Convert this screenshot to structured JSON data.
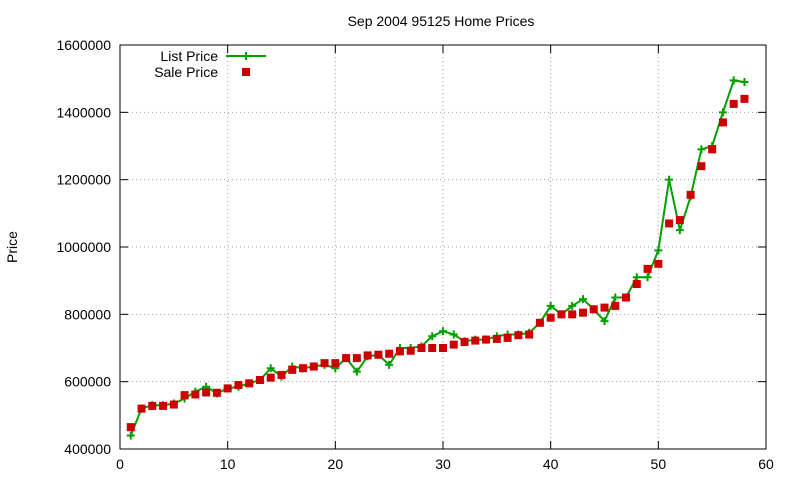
{
  "chart_data": {
    "type": "line",
    "title": "Sep 2004 95125 Home Prices",
    "xlabel": "",
    "ylabel": "Price",
    "xlim": [
      0,
      60
    ],
    "ylim": [
      400000,
      1600000
    ],
    "xticks": [
      "0",
      "10",
      "20",
      "30",
      "40",
      "50",
      "60"
    ],
    "yticks": [
      "400000",
      "600000",
      "800000",
      "1000000",
      "1200000",
      "1400000",
      "1600000"
    ],
    "grid": true,
    "legend_position": "top-left",
    "series": [
      {
        "name": "List Price",
        "style": "line-with-plus-markers",
        "color": "#00a000",
        "x": [
          1,
          2,
          3,
          4,
          5,
          6,
          7,
          8,
          9,
          10,
          11,
          12,
          13,
          14,
          15,
          16,
          17,
          18,
          19,
          20,
          21,
          22,
          23,
          24,
          25,
          26,
          27,
          28,
          29,
          30,
          31,
          32,
          33,
          34,
          35,
          36,
          37,
          38,
          39,
          40,
          41,
          42,
          43,
          44,
          45,
          46,
          47,
          48,
          49,
          50,
          51,
          52,
          53,
          54,
          55,
          56,
          57,
          58
        ],
        "y": [
          440000,
          520000,
          530000,
          530000,
          535000,
          550000,
          570000,
          585000,
          565000,
          580000,
          585000,
          595000,
          605000,
          640000,
          615000,
          645000,
          640000,
          645000,
          650000,
          640000,
          670000,
          630000,
          675000,
          680000,
          650000,
          700000,
          700000,
          705000,
          735000,
          750000,
          740000,
          720000,
          725000,
          725000,
          735000,
          740000,
          740000,
          745000,
          775000,
          825000,
          800000,
          825000,
          845000,
          815000,
          780000,
          850000,
          850000,
          910000,
          910000,
          990000,
          1200000,
          1050000,
          1150000,
          1290000,
          1300000,
          1400000,
          1495000,
          1490000
        ]
      },
      {
        "name": "Sale Price",
        "style": "square-markers",
        "color": "#cc0000",
        "x": [
          1,
          2,
          3,
          4,
          5,
          6,
          7,
          8,
          9,
          10,
          11,
          12,
          13,
          14,
          15,
          16,
          17,
          18,
          19,
          20,
          21,
          22,
          23,
          24,
          25,
          26,
          27,
          28,
          29,
          30,
          31,
          32,
          33,
          34,
          35,
          36,
          37,
          38,
          39,
          40,
          41,
          42,
          43,
          44,
          45,
          46,
          47,
          48,
          49,
          50,
          51,
          52,
          53,
          54,
          55,
          56,
          57,
          58
        ],
        "y": [
          465000,
          520000,
          528000,
          528000,
          532000,
          560000,
          562000,
          568000,
          567000,
          580000,
          590000,
          595000,
          605000,
          612000,
          620000,
          635000,
          640000,
          645000,
          655000,
          655000,
          670000,
          670000,
          678000,
          680000,
          683000,
          690000,
          692000,
          700000,
          700000,
          700000,
          710000,
          718000,
          722000,
          725000,
          727000,
          730000,
          738000,
          740000,
          775000,
          790000,
          800000,
          800000,
          805000,
          815000,
          820000,
          825000,
          850000,
          890000,
          935000,
          950000,
          1070000,
          1080000,
          1155000,
          1240000,
          1290000,
          1370000,
          1425000,
          1440000
        ]
      }
    ]
  }
}
